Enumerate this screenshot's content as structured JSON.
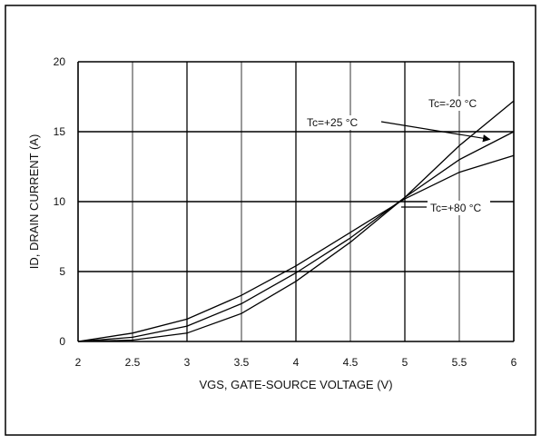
{
  "chart_data": {
    "type": "line",
    "xlabel": "VGS, GATE-SOURCE VOLTAGE (V)",
    "ylabel": "ID, DRAIN CURRENT (A)",
    "xlim": [
      2,
      6
    ],
    "ylim": [
      0,
      20
    ],
    "x_ticks": [
      "2",
      "2.5",
      "3",
      "3.5",
      "4",
      "4.5",
      "5",
      "5.5",
      "6"
    ],
    "y_ticks": [
      "0",
      "5",
      "10",
      "15",
      "20"
    ],
    "grid": true,
    "series": [
      {
        "name": "Tc=-20 °C",
        "x": [
          2,
          2.5,
          3,
          3.5,
          4,
          4.5,
          5,
          5.5,
          6
        ],
        "y": [
          0,
          0.1,
          0.6,
          2.0,
          4.3,
          7.1,
          10.3,
          14.0,
          17.2
        ]
      },
      {
        "name": "Tc=+25 °C",
        "x": [
          2,
          2.5,
          3,
          3.5,
          4,
          4.5,
          5,
          5.5,
          6
        ],
        "y": [
          0,
          0.3,
          1.1,
          2.7,
          4.9,
          7.4,
          10.3,
          13.0,
          15.0
        ]
      },
      {
        "name": "Tc=+80 °C",
        "x": [
          2,
          2.5,
          3,
          3.5,
          4,
          4.5,
          5,
          5.5,
          6
        ],
        "y": [
          0,
          0.6,
          1.6,
          3.3,
          5.4,
          7.8,
          10.2,
          12.1,
          13.3
        ]
      }
    ],
    "annotations": [
      {
        "text": "Tc=-20 °C",
        "series": 0
      },
      {
        "text": "Tc=+25 °C",
        "series": 1
      },
      {
        "text": "Tc=+80 °C",
        "series": 2
      }
    ]
  }
}
